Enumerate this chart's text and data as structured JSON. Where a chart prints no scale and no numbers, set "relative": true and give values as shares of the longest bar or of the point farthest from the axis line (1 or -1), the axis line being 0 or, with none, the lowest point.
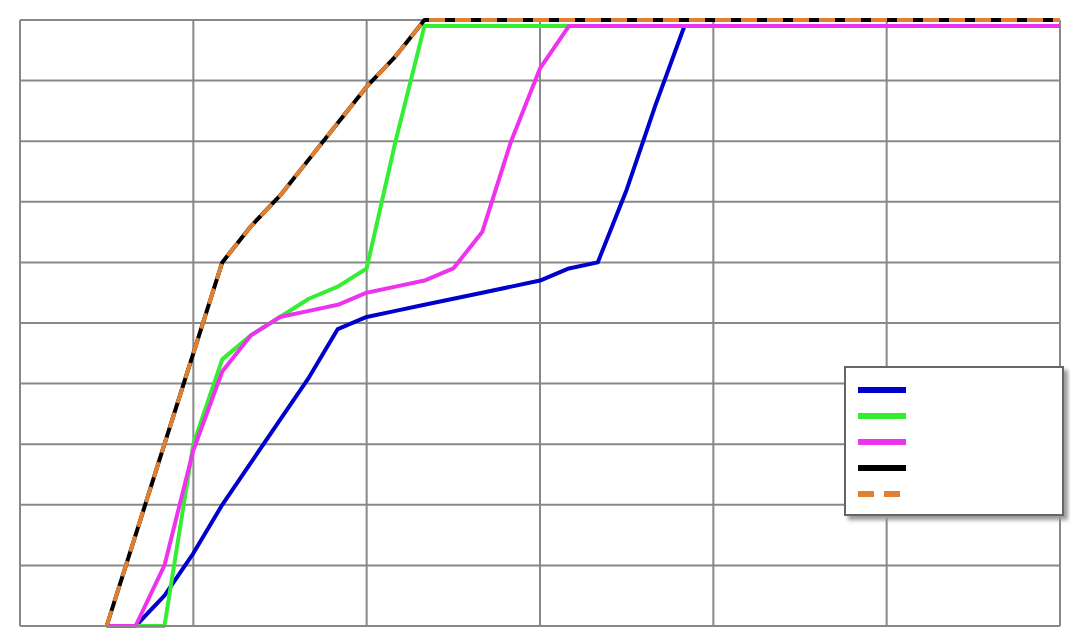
{
  "chart_data": {
    "type": "line",
    "relative": true,
    "categories": [
      null,
      null,
      null,
      null,
      null,
      null,
      null,
      null,
      null,
      null,
      null,
      null,
      null,
      null,
      null,
      null,
      null,
      null,
      null,
      null,
      null,
      null,
      null,
      null,
      null,
      null,
      null,
      null,
      null,
      null,
      null,
      null,
      null,
      null,
      null,
      null,
      null
    ],
    "series": [
      {
        "color": "#0000cc",
        "values": [
          null,
          null,
          null,
          0,
          0,
          0.05,
          0.12,
          0.2,
          0.27,
          0.34,
          0.41,
          0.49,
          0.51,
          0.52,
          0.53,
          0.54,
          0.55,
          0.56,
          0.57,
          0.59,
          0.6,
          0.72,
          0.86,
          0.99,
          null,
          null,
          null,
          null,
          null,
          null,
          null,
          null,
          null,
          null,
          null,
          null,
          null
        ]
      },
      {
        "color": "#33ee33",
        "values": [
          null,
          null,
          null,
          null,
          0,
          0,
          0.3,
          0.44,
          0.48,
          0.51,
          0.54,
          0.56,
          0.59,
          0.8,
          0.99,
          0.99,
          0.99,
          0.99,
          0.99,
          0.99,
          null,
          null,
          null,
          null,
          null,
          null,
          null,
          null,
          null,
          null,
          null,
          null,
          null,
          null,
          null,
          null,
          null
        ]
      },
      {
        "color": "#ee33ee",
        "values": [
          null,
          null,
          null,
          0,
          0,
          0.1,
          0.29,
          0.42,
          0.48,
          0.51,
          0.52,
          0.53,
          0.55,
          0.56,
          0.57,
          0.59,
          0.65,
          0.8,
          0.92,
          0.99,
          0.99,
          0.99,
          0.99,
          0.99,
          0.99,
          0.99,
          0.99,
          0.99,
          0.99,
          0.99,
          0.99,
          0.99,
          0.99,
          0.99,
          0.99,
          0.99,
          0.99
        ]
      },
      {
        "color": "#000000",
        "values": [
          null,
          null,
          null,
          0,
          0.15,
          0.3,
          0.45,
          0.6,
          0.66,
          0.71,
          0.77,
          0.83,
          0.89,
          0.94,
          1,
          1,
          1,
          1,
          1,
          1,
          1,
          1,
          1,
          1,
          1,
          1,
          1,
          1,
          1,
          1,
          1,
          1,
          1,
          1,
          1,
          1,
          1
        ]
      },
      {
        "color": "#e08030",
        "line_style": "dashed",
        "values": [
          null,
          null,
          null,
          0,
          0.15,
          0.3,
          0.45,
          0.6,
          0.66,
          0.71,
          0.77,
          0.83,
          0.89,
          0.94,
          1,
          1,
          1,
          1,
          1,
          1,
          1,
          1,
          1,
          1,
          1,
          1,
          1,
          1,
          1,
          1,
          1,
          1,
          1,
          1,
          1,
          1,
          1
        ]
      }
    ],
    "grid": true,
    "marker": "none",
    "line_style": "solid"
  }
}
